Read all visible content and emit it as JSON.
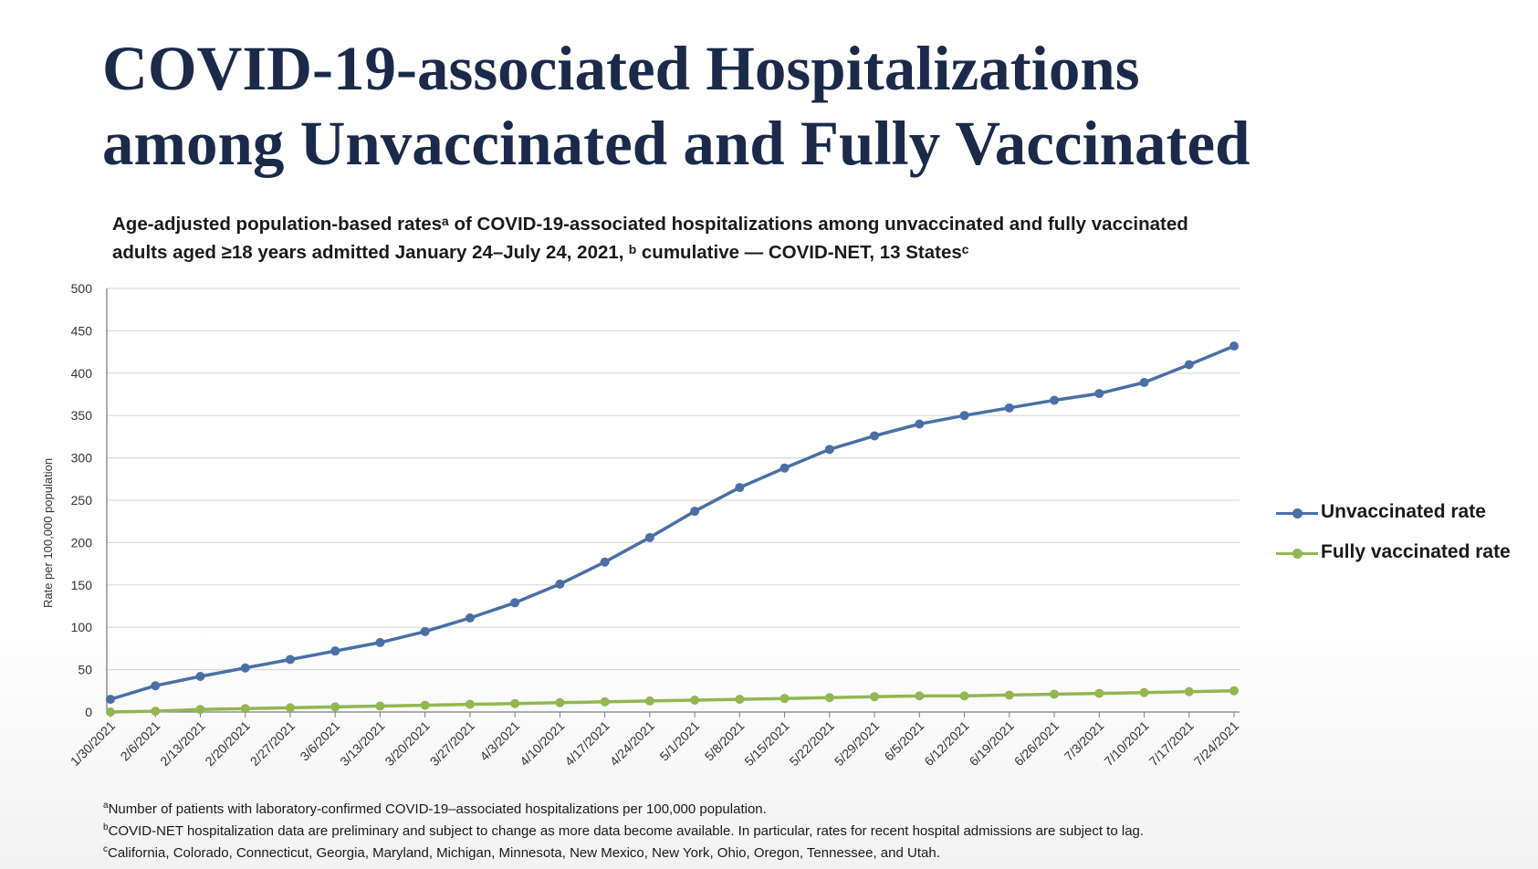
{
  "slide": {
    "title_line1": "COVID-19-associated Hospitalizations",
    "title_line2": "among Unvaccinated and Fully Vaccinated"
  },
  "chart_data": {
    "type": "line",
    "title_line1": "Age-adjusted population-based ratesᵃ of COVID-19-associated hospitalizations among unvaccinated and fully vaccinated",
    "title_line2": "adults aged ≥18 years admitted January 24–July 24, 2021, ᵇ cumulative — COVID-NET, 13 Statesᶜ",
    "xlabel": "",
    "ylabel": "Rate per 100,000 population",
    "ylim": [
      0,
      500
    ],
    "yticks": [
      0,
      50,
      100,
      150,
      200,
      250,
      300,
      350,
      400,
      450,
      500
    ],
    "grid": true,
    "legend_position": "right",
    "categories": [
      "1/30/2021",
      "2/6/2021",
      "2/13/2021",
      "2/20/2021",
      "2/27/2021",
      "3/6/2021",
      "3/13/2021",
      "3/20/2021",
      "3/27/2021",
      "4/3/2021",
      "4/10/2021",
      "4/17/2021",
      "4/24/2021",
      "5/1/2021",
      "5/8/2021",
      "5/15/2021",
      "5/22/2021",
      "5/29/2021",
      "6/5/2021",
      "6/12/2021",
      "6/19/2021",
      "6/26/2021",
      "7/3/2021",
      "7/10/2021",
      "7/17/2021",
      "7/24/2021"
    ],
    "series": [
      {
        "name": "Unvaccinated rate",
        "color": "#4a6fa5",
        "values": [
          15,
          31,
          42,
          52,
          62,
          72,
          82,
          95,
          111,
          129,
          151,
          177,
          206,
          237,
          265,
          288,
          310,
          326,
          340,
          350,
          359,
          368,
          376,
          389,
          410,
          432
        ]
      },
      {
        "name": "Fully vaccinated rate",
        "color": "#93b651",
        "values": [
          0,
          1,
          3,
          4,
          5,
          6,
          7,
          8,
          9,
          10,
          11,
          12,
          13,
          14,
          15,
          16,
          17,
          18,
          19,
          19,
          20,
          21,
          22,
          23,
          24,
          25
        ]
      }
    ]
  },
  "footnotes": [
    {
      "mark": "a",
      "text": "Number of patients with laboratory-confirmed COVID-19–associated hospitalizations per 100,000 population."
    },
    {
      "mark": "b",
      "text": "COVID-NET hospitalization data are preliminary and subject to change as more data become available. In particular, rates for recent hospital admissions are subject to lag."
    },
    {
      "mark": "c",
      "text": "California, Colorado, Connecticut, Georgia, Maryland, Michigan, Minnesota, New Mexico, New York, Ohio, Oregon, Tennessee, and Utah."
    }
  ]
}
